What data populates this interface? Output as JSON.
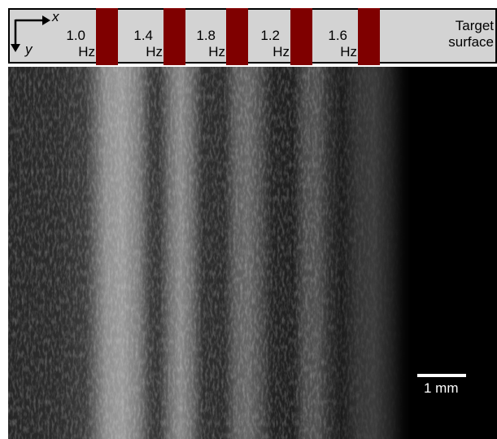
{
  "header": {
    "axes": {
      "x": "x",
      "y": "y"
    },
    "labels": [
      {
        "value": "1.0",
        "unit": "Hz"
      },
      {
        "value": "1.4",
        "unit": "Hz"
      },
      {
        "value": "1.8",
        "unit": "Hz"
      },
      {
        "value": "1.2",
        "unit": "Hz"
      },
      {
        "value": "1.6",
        "unit": "Hz"
      }
    ],
    "target": [
      "Target",
      "surface"
    ]
  },
  "scale_bar": {
    "label": "1 mm"
  }
}
